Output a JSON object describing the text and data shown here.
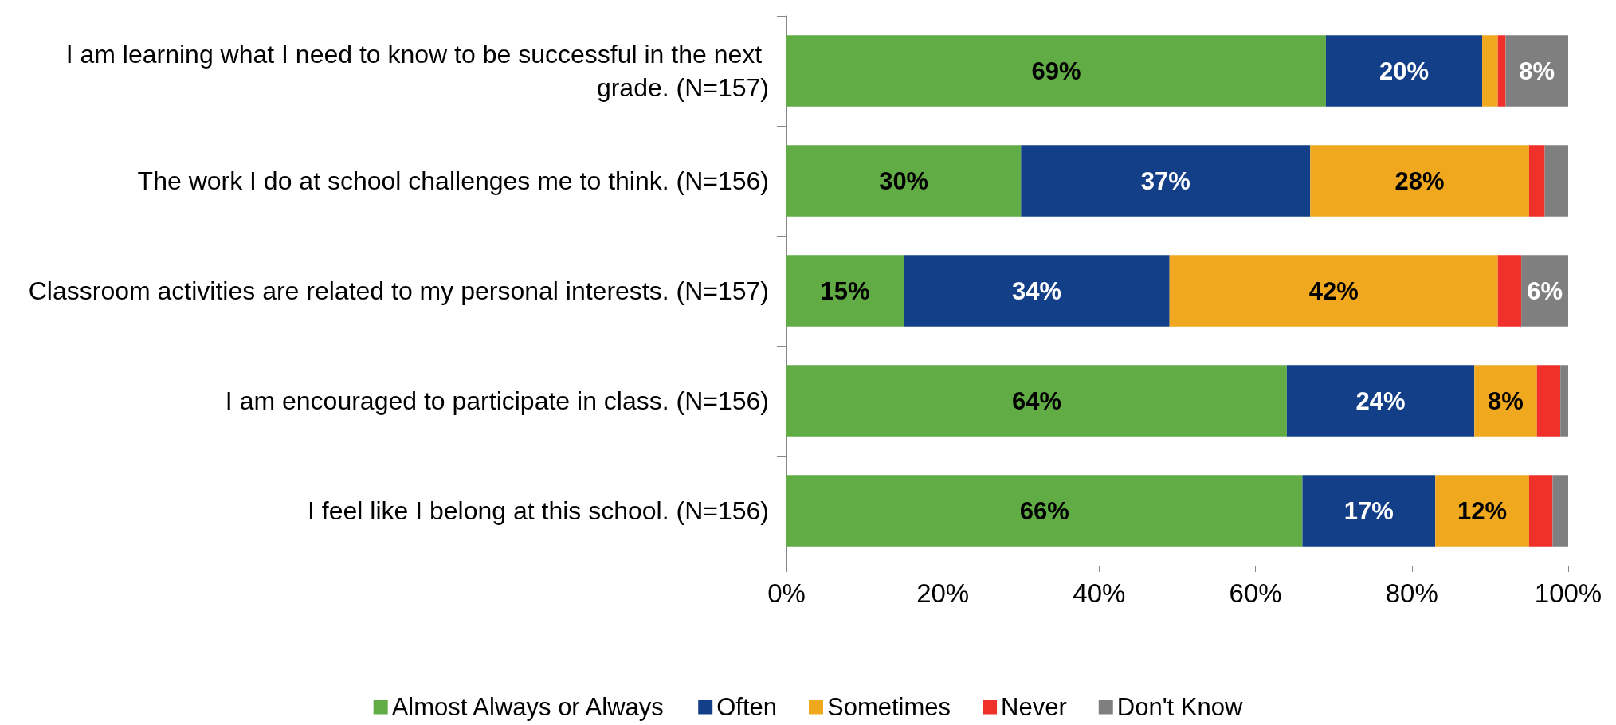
{
  "chart_data": {
    "type": "bar",
    "orientation": "horizontal",
    "stacked": true,
    "categories": [
      "I am learning what I need to know to be successful in the next grade. (N=157)",
      "The work I do at school challenges me to think. (N=156)",
      "Classroom activities are related to my personal interests. (N=157)",
      "I am encouraged to participate in class. (N=156)",
      "I feel like I belong at this school. (N=156)"
    ],
    "series": [
      {
        "name": "Almost Always or Always",
        "color": "#62ac46",
        "values": [
          69,
          30,
          15,
          64,
          66
        ],
        "value_labels": [
          "69%",
          "30%",
          "15%",
          "64%",
          "66%"
        ]
      },
      {
        "name": "Often",
        "color": "#133f88",
        "values": [
          20,
          37,
          34,
          24,
          17
        ],
        "value_labels": [
          "20%",
          "37%",
          "34%",
          "24%",
          "17%"
        ]
      },
      {
        "name": "Sometimes",
        "color": "#f0a81e",
        "values": [
          2,
          28,
          42,
          8,
          12
        ],
        "value_labels": [
          null,
          "28%",
          "42%",
          "8%",
          "12%"
        ]
      },
      {
        "name": "Never",
        "color": "#f0302a",
        "values": [
          1,
          2,
          3,
          3,
          3
        ],
        "value_labels": [
          null,
          null,
          null,
          null,
          null
        ]
      },
      {
        "name": "Don't Know",
        "color": "#7f7f7f",
        "values": [
          8,
          3,
          6,
          1,
          2
        ],
        "value_labels": [
          "8%",
          null,
          "6%",
          null,
          null
        ]
      }
    ],
    "xlim": [
      0,
      100
    ],
    "xticks": [
      {
        "value": 0,
        "label": "0%"
      },
      {
        "value": 20,
        "label": "20%"
      },
      {
        "value": 40,
        "label": "40%"
      },
      {
        "value": 60,
        "label": "60%"
      },
      {
        "value": 80,
        "label": "80%"
      },
      {
        "value": 100,
        "label": "100%"
      }
    ],
    "grid": false,
    "legend": "bottom"
  }
}
